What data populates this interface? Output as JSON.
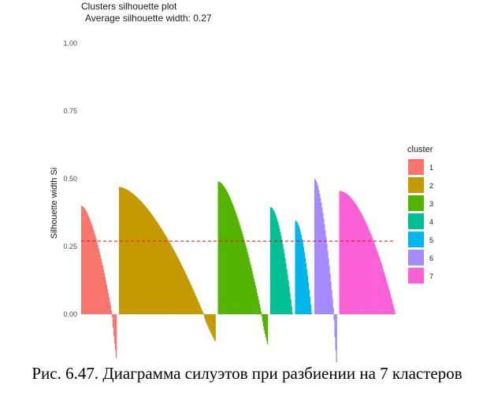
{
  "caption": "Рис. 6.47. Диаграмма силуэтов при разбиении на 7 кластеров",
  "chart_data": {
    "type": "bar",
    "title": "Clusters silhouette plot",
    "subtitle": "Average silhouette width: 0.27",
    "xlabel": "",
    "ylabel": "Silhouette width Si",
    "ylim": [
      -0.18,
      1.05
    ],
    "yticks": [
      "0.00",
      "0.25",
      "0.50",
      "0.75",
      "1.00"
    ],
    "average_line": 0.27,
    "average_line_color": "#ff0000",
    "grid": false,
    "legend": {
      "title": "cluster",
      "position": "right"
    },
    "clusters": [
      {
        "name": "1",
        "color": "#F8766D",
        "max": 0.4,
        "min": -0.16,
        "n": 44
      },
      {
        "name": "2",
        "color": "#C49A00",
        "max": 0.47,
        "min": -0.1,
        "n": 120
      },
      {
        "name": "3",
        "color": "#53B400",
        "max": 0.49,
        "min": -0.11,
        "n": 62
      },
      {
        "name": "4",
        "color": "#00C094",
        "max": 0.39,
        "min": 0.0,
        "n": 28
      },
      {
        "name": "5",
        "color": "#00B6EB",
        "max": 0.34,
        "min": 0.0,
        "n": 21
      },
      {
        "name": "6",
        "color": "#A58AFF",
        "max": 0.5,
        "min": -0.18,
        "n": 28
      },
      {
        "name": "7",
        "color": "#FB61D7",
        "max": 0.45,
        "min": 0.0,
        "n": 70
      }
    ]
  }
}
